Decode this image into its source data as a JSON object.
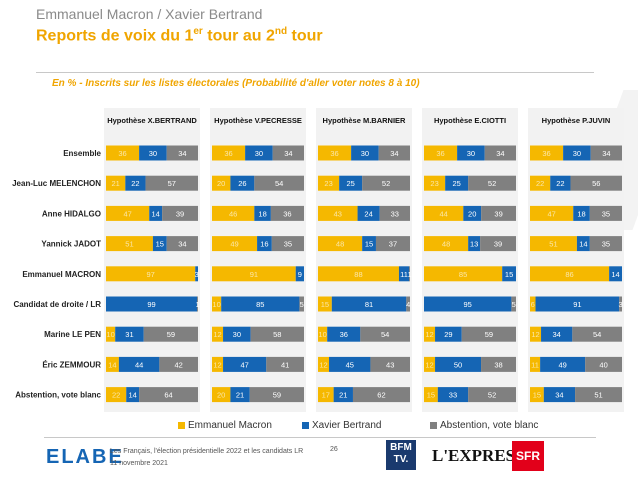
{
  "header": {
    "subtitle": "Emmanuel Macron / Xavier Bertrand",
    "title_main": "Reports de voix du 1",
    "title_sup1": "er",
    "title_mid": " tour au 2",
    "title_sup2": "nd",
    "title_end": " tour",
    "note": "En % - Inscrits sur les listes électorales (Probabilité d'aller voter notes 8 à 10)"
  },
  "colors": {
    "macron": "#f5b800",
    "bertrand": "#1565b4",
    "abstention": "#808080"
  },
  "chart_data": {
    "type": "bar",
    "stacked": true,
    "orientation": "horizontal",
    "panels": [
      "Hypothèse X.BERTRAND",
      "Hypothèse V.PECRESSE",
      "Hypothèse M.BARNIER",
      "Hypothèse E.CIOTTI",
      "Hypothèse P.JUVIN"
    ],
    "categories": [
      "Ensemble",
      "Jean-Luc MELENCHON",
      "Anne HIDALGO",
      "Yannick JADOT",
      "Emmanuel MACRON",
      "Candidat de droite / LR",
      "Marine LE PEN",
      "Éric ZEMMOUR",
      "Abstention, vote blanc"
    ],
    "series": [
      {
        "name": "Emmanuel Macron",
        "values": [
          [
            36,
            21,
            47,
            51,
            97,
            0,
            10,
            14,
            22
          ],
          [
            36,
            20,
            46,
            49,
            91,
            10,
            12,
            12,
            20
          ],
          [
            36,
            23,
            43,
            48,
            88,
            15,
            10,
            12,
            17
          ],
          [
            36,
            23,
            44,
            48,
            85,
            0,
            12,
            12,
            15
          ],
          [
            36,
            22,
            47,
            51,
            86,
            6,
            12,
            11,
            15
          ]
        ]
      },
      {
        "name": "Xavier Bertrand",
        "values": [
          [
            30,
            22,
            14,
            15,
            3,
            99,
            31,
            44,
            14
          ],
          [
            30,
            26,
            18,
            16,
            9,
            85,
            30,
            47,
            21
          ],
          [
            30,
            25,
            24,
            15,
            11,
            81,
            36,
            45,
            21
          ],
          [
            30,
            25,
            20,
            13,
            15,
            95,
            29,
            50,
            33
          ],
          [
            30,
            22,
            18,
            14,
            14,
            91,
            34,
            49,
            34
          ]
        ]
      },
      {
        "name": "Abstention, vote blanc",
        "values": [
          [
            34,
            57,
            39,
            34,
            0,
            1,
            59,
            42,
            64
          ],
          [
            34,
            54,
            36,
            35,
            0,
            5,
            58,
            41,
            59
          ],
          [
            34,
            52,
            33,
            37,
            1,
            4,
            54,
            43,
            62
          ],
          [
            34,
            52,
            39,
            39,
            0,
            5,
            59,
            38,
            52
          ],
          [
            34,
            56,
            35,
            35,
            0,
            3,
            54,
            40,
            51
          ]
        ]
      }
    ],
    "legend_position": "bottom"
  },
  "legend": {
    "macron": "Emmanuel Macron",
    "bertrand": "Xavier Bertrand",
    "abstention": "Abstention, vote blanc"
  },
  "footer": {
    "logo": "ELABE",
    "line1": "Les Français, l'élection présidentielle 2022 et les candidats LR",
    "line2": "11 novembre 2021",
    "page": "26",
    "bfm": "BFM TV.",
    "express": "L'EXPRESS",
    "sfr": "SFR"
  }
}
